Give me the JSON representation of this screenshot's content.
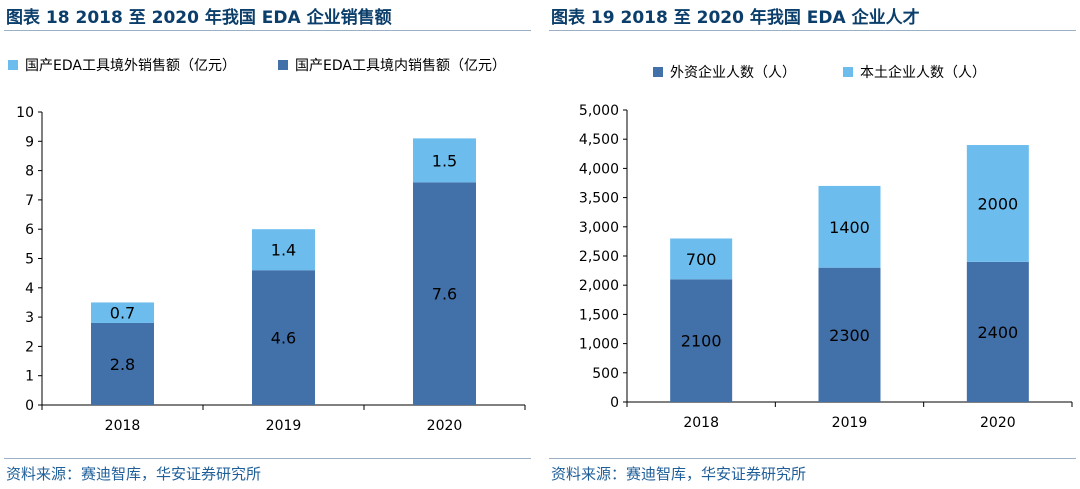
{
  "colors": {
    "dark": "#4270a8",
    "light": "#6cbdee",
    "title": "#0b3e6b",
    "source": "#1f5f99"
  },
  "chart_data": [
    {
      "type": "bar",
      "stacked": true,
      "title": "图表 18 2018 至 2020 年我国 EDA 企业销售额",
      "source": "资料来源：赛迪智库，华安证券研究所",
      "categories": [
        "2018",
        "2019",
        "2020"
      ],
      "ylim": [
        0,
        10
      ],
      "yticks": [
        0,
        1,
        2,
        3,
        4,
        5,
        6,
        7,
        8,
        9,
        10
      ],
      "legend": "top",
      "series": [
        {
          "name": "国产EDA工具境内销售额（亿元）",
          "values": [
            2.8,
            4.6,
            7.6
          ],
          "color": "#4270a8"
        },
        {
          "name": "国产EDA工具境外销售额（亿元）",
          "values": [
            0.7,
            1.4,
            1.5
          ],
          "color": "#6cbdee"
        }
      ],
      "legend_order": [
        1,
        0
      ]
    },
    {
      "type": "bar",
      "stacked": true,
      "title": "图表 19 2018 至 2020 年我国 EDA 企业人才",
      "source": "资料来源：赛迪智库，华安证券研究所",
      "categories": [
        "2018",
        "2019",
        "2020"
      ],
      "ylim": [
        0,
        5000
      ],
      "yticks": [
        "0",
        "500",
        "1,000",
        "1,500",
        "2,000",
        "2,500",
        "3,000",
        "3,500",
        "4,000",
        "4,500",
        "5,000"
      ],
      "legend": "top",
      "series": [
        {
          "name": "外资企业人数（人）",
          "values": [
            2100,
            2300,
            2400
          ],
          "color": "#4270a8"
        },
        {
          "name": "本土企业人数（人）",
          "values": [
            700,
            1400,
            2000
          ],
          "color": "#6cbdee"
        }
      ],
      "legend_order": [
        0,
        1
      ]
    }
  ]
}
